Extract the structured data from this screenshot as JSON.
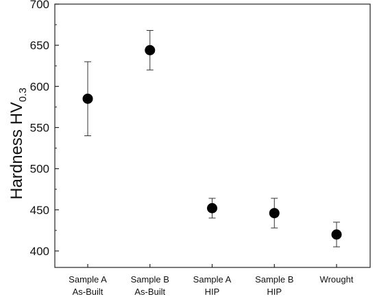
{
  "chart_data": {
    "type": "scatter",
    "title": "",
    "xlabel": "",
    "ylabel": "Hardness HV",
    "ylabel_subscript": "0.3",
    "ylim": [
      380,
      700
    ],
    "yticks": [
      400,
      450,
      500,
      550,
      600,
      650,
      700
    ],
    "grid": false,
    "legend": "none",
    "marker_color": "#000000",
    "categories": [
      [
        "Sample A",
        "As-Built"
      ],
      [
        "Sample B",
        "As-Built"
      ],
      [
        "Sample A",
        "HIP"
      ],
      [
        "Sample B",
        "HIP"
      ],
      [
        "Wrought"
      ]
    ],
    "values": [
      585,
      644,
      452,
      446,
      420
    ],
    "error_low": [
      540,
      620,
      440,
      428,
      405
    ],
    "error_high": [
      630,
      668,
      464,
      464,
      435
    ]
  }
}
